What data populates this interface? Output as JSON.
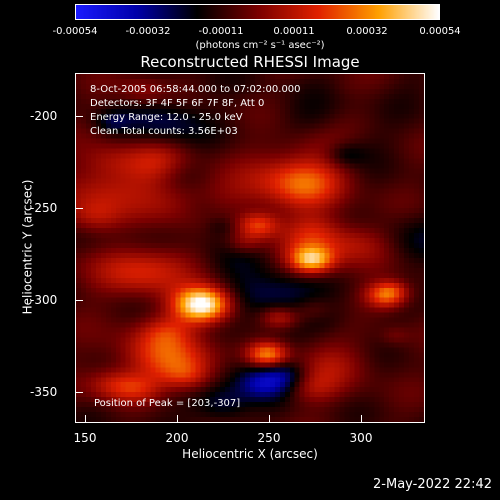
{
  "colorbar": {
    "ticks": [
      "-0.00054",
      "-0.00032",
      "-0.00011",
      "0.00011",
      "0.00032",
      "0.00054"
    ],
    "units": "(photons cm⁻² s⁻¹ asec⁻²)",
    "colors": [
      "#1b1bff",
      "#0000aa",
      "#000000",
      "#7a0000",
      "#e02000",
      "#ffa000",
      "#ffffff"
    ]
  },
  "title": "Reconstructed RHESSI Image",
  "info": {
    "time": "8-Oct-2005 06:58:44.000 to 07:02:00.000",
    "detectors": "Detectors: 3F 4F 5F 6F 7F 8F, Att 0",
    "energy": "Energy Range: 12.0 - 25.0 keV",
    "clean": "Clean     Total counts: 3.56E+03",
    "peak": "Position of Peak = [203,-307]"
  },
  "axes": {
    "xlabel": "Heliocentric X (arcsec)",
    "ylabel": "Heliocentric Y (arcsec)",
    "xticks": [
      "150",
      "200",
      "250",
      "300"
    ],
    "yticks": [
      "-200",
      "-250",
      "-300",
      "-350"
    ],
    "xlim": [
      145,
      335
    ],
    "ylim": [
      -370,
      -180
    ]
  },
  "timestamp": "2-May-2022 22:42"
}
